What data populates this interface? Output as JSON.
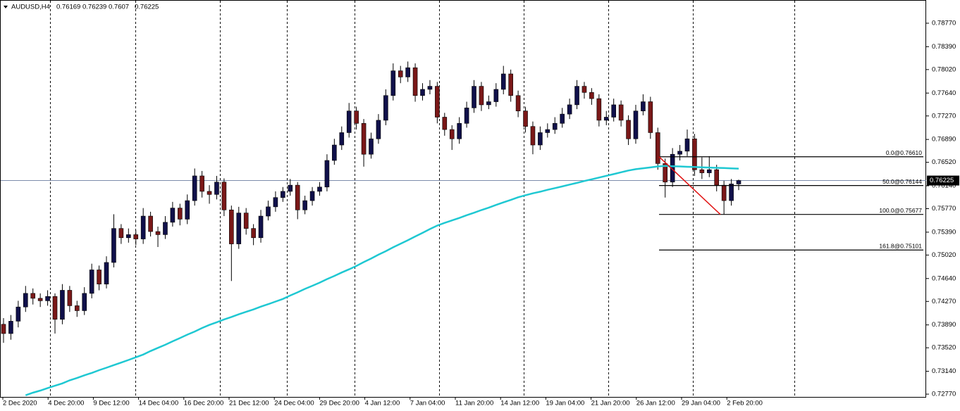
{
  "chart_data": {
    "type": "candlestick",
    "title": "AUDUSD,H4",
    "ylim": [
      0.72725,
      0.79134
    ],
    "yticks": [
      {
        "value": 0.7877,
        "label": "0.78770"
      },
      {
        "value": 0.7839,
        "label": "0.78390"
      },
      {
        "value": 0.7802,
        "label": "0.78020"
      },
      {
        "value": 0.7764,
        "label": "0.77640"
      },
      {
        "value": 0.7727,
        "label": "0.77270"
      },
      {
        "value": 0.7689,
        "label": "0.76890"
      },
      {
        "value": 0.7652,
        "label": "0.76520"
      },
      {
        "value": 0.7614,
        "label": "0.76140"
      },
      {
        "value": 0.7577,
        "label": "0.75770"
      },
      {
        "value": 0.7539,
        "label": "0.75390"
      },
      {
        "value": 0.7502,
        "label": "0.75020"
      },
      {
        "value": 0.7464,
        "label": "0.74640"
      },
      {
        "value": 0.7427,
        "label": "0.74270"
      },
      {
        "value": 0.7389,
        "label": "0.73890"
      },
      {
        "value": 0.7352,
        "label": "0.73520"
      },
      {
        "value": 0.7314,
        "label": "0.73140"
      },
      {
        "value": 0.7277,
        "label": "0.72770"
      }
    ],
    "categories": [
      "2 Dec 2020",
      "4 Dec 20:00",
      "9 Dec 12:00",
      "14 Dec 04:00",
      "16 Dec 20:00",
      "21 Dec 12:00",
      "24 Dec 04:00",
      "29 Dec 20:00",
      "4 Jan 12:00",
      "7 Jan 04:00",
      "11 Jan 20:00",
      "14 Jan 12:00",
      "19 Jan 04:00",
      "21 Jan 20:00",
      "26 Jan 12:00",
      "29 Jan 04:00",
      "2 Feb 20:00"
    ],
    "up_color": "#10104a",
    "down_color": "#7a1818",
    "candles": [
      [
        0.739,
        0.74,
        0.736,
        0.7375
      ],
      [
        0.7375,
        0.7405,
        0.7365,
        0.7395
      ],
      [
        0.7395,
        0.7428,
        0.7385,
        0.7418
      ],
      [
        0.7418,
        0.7452,
        0.741,
        0.744
      ],
      [
        0.744,
        0.7448,
        0.7422,
        0.7432
      ],
      [
        0.7432,
        0.744,
        0.7418,
        0.7428
      ],
      [
        0.7428,
        0.7445,
        0.742,
        0.7435
      ],
      [
        0.7435,
        0.744,
        0.7375,
        0.7398
      ],
      [
        0.7398,
        0.7455,
        0.739,
        0.7445
      ],
      [
        0.7445,
        0.7452,
        0.741,
        0.742
      ],
      [
        0.742,
        0.7428,
        0.7402,
        0.7412
      ],
      [
        0.7412,
        0.745,
        0.7405,
        0.744
      ],
      [
        0.744,
        0.7488,
        0.7432,
        0.7478
      ],
      [
        0.7478,
        0.7485,
        0.7445,
        0.7455
      ],
      [
        0.7455,
        0.75,
        0.7448,
        0.749
      ],
      [
        0.749,
        0.7568,
        0.7482,
        0.7545
      ],
      [
        0.7545,
        0.7552,
        0.752,
        0.753
      ],
      [
        0.753,
        0.7545,
        0.7522,
        0.7535
      ],
      [
        0.7535,
        0.7542,
        0.7518,
        0.7528
      ],
      [
        0.7528,
        0.7578,
        0.752,
        0.7565
      ],
      [
        0.7565,
        0.7572,
        0.7532,
        0.754
      ],
      [
        0.754,
        0.7548,
        0.7515,
        0.7535
      ],
      [
        0.7535,
        0.7565,
        0.7528,
        0.7555
      ],
      [
        0.7555,
        0.7588,
        0.7548,
        0.7578
      ],
      [
        0.7578,
        0.7585,
        0.755,
        0.756
      ],
      [
        0.756,
        0.76,
        0.7552,
        0.759
      ],
      [
        0.759,
        0.7642,
        0.7582,
        0.763
      ],
      [
        0.763,
        0.7638,
        0.7595,
        0.7605
      ],
      [
        0.7605,
        0.7615,
        0.7585,
        0.76
      ],
      [
        0.76,
        0.763,
        0.7592,
        0.762
      ],
      [
        0.762,
        0.7626,
        0.7565,
        0.7575
      ],
      [
        0.7575,
        0.7582,
        0.746,
        0.752
      ],
      [
        0.752,
        0.758,
        0.7512,
        0.757
      ],
      [
        0.757,
        0.7578,
        0.7535,
        0.7545
      ],
      [
        0.7545,
        0.7552,
        0.7518,
        0.753
      ],
      [
        0.753,
        0.7575,
        0.7522,
        0.7565
      ],
      [
        0.7565,
        0.759,
        0.7558,
        0.758
      ],
      [
        0.758,
        0.7605,
        0.7572,
        0.7595
      ],
      [
        0.7595,
        0.7612,
        0.7588,
        0.7605
      ],
      [
        0.7605,
        0.7625,
        0.7598,
        0.7615
      ],
      [
        0.7615,
        0.762,
        0.756,
        0.7575
      ],
      [
        0.7575,
        0.7598,
        0.7568,
        0.759
      ],
      [
        0.759,
        0.7612,
        0.7582,
        0.7605
      ],
      [
        0.7605,
        0.762,
        0.7598,
        0.7612
      ],
      [
        0.7612,
        0.7665,
        0.7605,
        0.7655
      ],
      [
        0.7655,
        0.769,
        0.7648,
        0.768
      ],
      [
        0.768,
        0.771,
        0.7672,
        0.77
      ],
      [
        0.77,
        0.7748,
        0.7692,
        0.7735
      ],
      [
        0.7735,
        0.7742,
        0.7705,
        0.7715
      ],
      [
        0.7715,
        0.7722,
        0.7645,
        0.7665
      ],
      [
        0.7665,
        0.77,
        0.7658,
        0.769
      ],
      [
        0.769,
        0.773,
        0.7682,
        0.772
      ],
      [
        0.772,
        0.777,
        0.7712,
        0.776
      ],
      [
        0.776,
        0.7812,
        0.7752,
        0.78
      ],
      [
        0.78,
        0.7808,
        0.778,
        0.779
      ],
      [
        0.779,
        0.7815,
        0.7782,
        0.7805
      ],
      [
        0.7805,
        0.7812,
        0.775,
        0.776
      ],
      [
        0.776,
        0.778,
        0.7752,
        0.777
      ],
      [
        0.777,
        0.7785,
        0.7762,
        0.7775
      ],
      [
        0.7775,
        0.7782,
        0.7715,
        0.7725
      ],
      [
        0.7725,
        0.7732,
        0.7695,
        0.7705
      ],
      [
        0.7705,
        0.7712,
        0.7672,
        0.769
      ],
      [
        0.769,
        0.7725,
        0.7682,
        0.7715
      ],
      [
        0.7715,
        0.775,
        0.7708,
        0.774
      ],
      [
        0.774,
        0.7785,
        0.7732,
        0.7775
      ],
      [
        0.7775,
        0.7782,
        0.7735,
        0.7745
      ],
      [
        0.7745,
        0.776,
        0.7738,
        0.775
      ],
      [
        0.775,
        0.778,
        0.7742,
        0.777
      ],
      [
        0.777,
        0.7808,
        0.7762,
        0.7795
      ],
      [
        0.7795,
        0.7802,
        0.775,
        0.776
      ],
      [
        0.776,
        0.7768,
        0.7725,
        0.7735
      ],
      [
        0.7735,
        0.7742,
        0.77,
        0.771
      ],
      [
        0.771,
        0.7718,
        0.7665,
        0.768
      ],
      [
        0.768,
        0.771,
        0.7672,
        0.77
      ],
      [
        0.77,
        0.7715,
        0.7692,
        0.7705
      ],
      [
        0.7705,
        0.7725,
        0.7698,
        0.7715
      ],
      [
        0.7715,
        0.774,
        0.7708,
        0.773
      ],
      [
        0.773,
        0.7755,
        0.7722,
        0.7745
      ],
      [
        0.7745,
        0.7785,
        0.7738,
        0.7775
      ],
      [
        0.7775,
        0.7782,
        0.7755,
        0.7765
      ],
      [
        0.7765,
        0.7772,
        0.7745,
        0.7755
      ],
      [
        0.7755,
        0.7762,
        0.771,
        0.772
      ],
      [
        0.772,
        0.7735,
        0.7712,
        0.7725
      ],
      [
        0.7725,
        0.7755,
        0.7718,
        0.7745
      ],
      [
        0.7745,
        0.7752,
        0.771,
        0.772
      ],
      [
        0.772,
        0.7728,
        0.768,
        0.769
      ],
      [
        0.769,
        0.7745,
        0.7682,
        0.7735
      ],
      [
        0.7735,
        0.7762,
        0.7728,
        0.775
      ],
      [
        0.775,
        0.7758,
        0.769,
        0.77
      ],
      [
        0.77,
        0.7708,
        0.764,
        0.765
      ],
      [
        0.765,
        0.7658,
        0.7595,
        0.762
      ],
      [
        0.762,
        0.7675,
        0.7612,
        0.7665
      ],
      [
        0.7665,
        0.768,
        0.7655,
        0.767
      ],
      [
        0.767,
        0.7705,
        0.7662,
        0.769
      ],
      [
        0.769,
        0.7698,
        0.763,
        0.764
      ],
      [
        0.764,
        0.766,
        0.7625,
        0.7635
      ],
      [
        0.7635,
        0.7662,
        0.7628,
        0.764
      ],
      [
        0.764,
        0.7648,
        0.7605,
        0.7615
      ],
      [
        0.7615,
        0.7622,
        0.7568,
        0.759
      ],
      [
        0.759,
        0.7625,
        0.7582,
        0.7617
      ],
      [
        0.76169,
        0.76239,
        0.7607,
        0.76225
      ]
    ],
    "ma": {
      "color": "#1fc8d2",
      "values": [
        null,
        null,
        null,
        0.72751,
        0.72793,
        0.72827,
        0.72868,
        0.72906,
        0.72943,
        0.72994,
        0.73031,
        0.73074,
        0.73113,
        0.73158,
        0.73197,
        0.73239,
        0.73281,
        0.73323,
        0.73366,
        0.7341,
        0.73467,
        0.73518,
        0.73569,
        0.73624,
        0.73677,
        0.73732,
        0.73783,
        0.7384,
        0.7389,
        0.73933,
        0.73978,
        0.74018,
        0.74061,
        0.74101,
        0.7414,
        0.74185,
        0.74225,
        0.74268,
        0.7431,
        0.74365,
        0.74417,
        0.74472,
        0.74523,
        0.74574,
        0.74631,
        0.74682,
        0.74738,
        0.74789,
        0.74844,
        0.74906,
        0.74963,
        0.75026,
        0.75082,
        0.75145,
        0.75202,
        0.75259,
        0.75321,
        0.75378,
        0.7544,
        0.75497,
        0.7554,
        0.7558,
        0.7562,
        0.75664,
        0.75704,
        0.75747,
        0.75786,
        0.7583,
        0.75871,
        0.75911,
        0.75954,
        0.75987,
        0.76018,
        0.76045,
        0.76075,
        0.76102,
        0.7613,
        0.7616,
        0.76187,
        0.76217,
        0.76245,
        0.76273,
        0.76302,
        0.76329,
        0.76359,
        0.76387,
        0.76409,
        0.76423,
        0.76437,
        0.76453,
        0.76462,
        0.76457,
        0.76453,
        0.76448,
        0.76444,
        0.76439,
        0.76435,
        0.7643,
        0.76427,
        0.76422,
        0.76418
      ]
    },
    "fibo": {
      "color": "#e01010",
      "levels": [
        {
          "price": 0.7661,
          "label": "0.0@0.76610"
        },
        {
          "price": 0.76144,
          "label": "50.0@0.76144"
        },
        {
          "price": 0.75677,
          "label": "100.0@0.75677"
        },
        {
          "price": 0.75101,
          "label": "161.8@0.75101"
        }
      ]
    }
  }
}
